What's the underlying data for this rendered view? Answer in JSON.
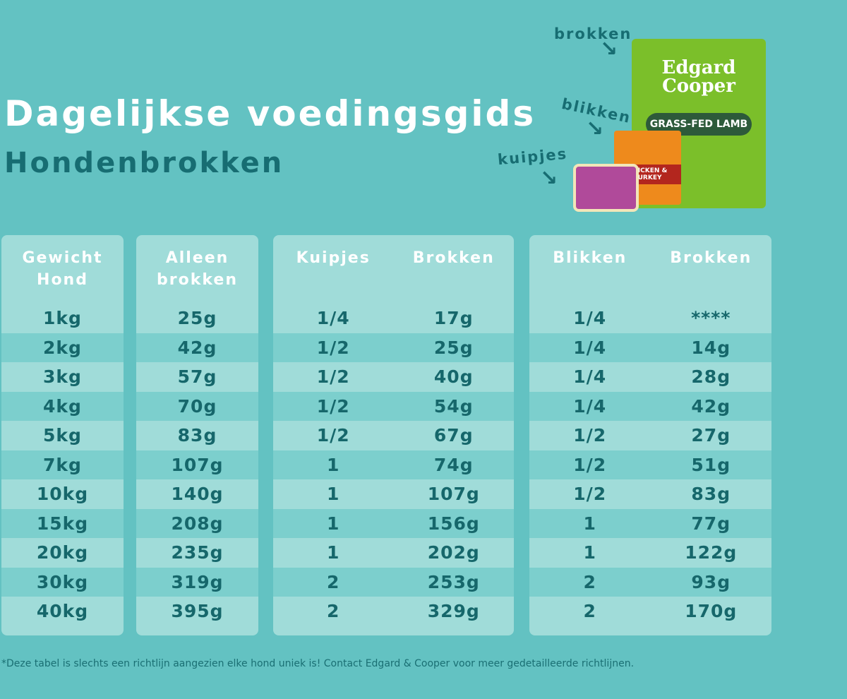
{
  "title": "Dagelijkse voedingsgids",
  "subtitle": "Hondenbrokken",
  "product_labels": {
    "brokken": "brokken",
    "blikken": "blikken",
    "kuipjes": "kuipjes"
  },
  "products": {
    "bag_brand": "Edgard Cooper",
    "bag_flavor": "GRASS-FED LAMB",
    "can_flavor": "CHICKEN & TURKEY"
  },
  "tables": [
    {
      "headers": [
        "Gewicht Hond"
      ],
      "rows": [
        [
          "1kg"
        ],
        [
          "2kg"
        ],
        [
          "3kg"
        ],
        [
          "4kg"
        ],
        [
          "5kg"
        ],
        [
          "7kg"
        ],
        [
          "10kg"
        ],
        [
          "15kg"
        ],
        [
          "20kg"
        ],
        [
          "30kg"
        ],
        [
          "40kg"
        ]
      ]
    },
    {
      "headers": [
        "Alleen brokken"
      ],
      "rows": [
        [
          "25g"
        ],
        [
          "42g"
        ],
        [
          "57g"
        ],
        [
          "70g"
        ],
        [
          "83g"
        ],
        [
          "107g"
        ],
        [
          "140g"
        ],
        [
          "208g"
        ],
        [
          "235g"
        ],
        [
          "319g"
        ],
        [
          "395g"
        ]
      ]
    },
    {
      "headers": [
        "Kuipjes",
        "Brokken"
      ],
      "rows": [
        [
          "1/4",
          "17g"
        ],
        [
          "1/2",
          "25g"
        ],
        [
          "1/2",
          "40g"
        ],
        [
          "1/2",
          "54g"
        ],
        [
          "1/2",
          "67g"
        ],
        [
          "1",
          "74g"
        ],
        [
          "1",
          "107g"
        ],
        [
          "1",
          "156g"
        ],
        [
          "1",
          "202g"
        ],
        [
          "2",
          "253g"
        ],
        [
          "2",
          "329g"
        ]
      ]
    },
    {
      "headers": [
        "Blikken",
        "Brokken"
      ],
      "rows": [
        [
          "1/4",
          "****"
        ],
        [
          "1/4",
          "14g"
        ],
        [
          "1/4",
          "28g"
        ],
        [
          "1/4",
          "42g"
        ],
        [
          "1/2",
          "27g"
        ],
        [
          "1/2",
          "51g"
        ],
        [
          "1/2",
          "83g"
        ],
        [
          "1",
          "77g"
        ],
        [
          "1",
          "122g"
        ],
        [
          "2",
          "93g"
        ],
        [
          "2",
          "170g"
        ]
      ]
    }
  ],
  "footnote": "*Deze tabel is slechts een richtlijn aangezien elke hond uniek is! Contact Edgard & Cooper voor meer gedetailleerde richtlijnen."
}
